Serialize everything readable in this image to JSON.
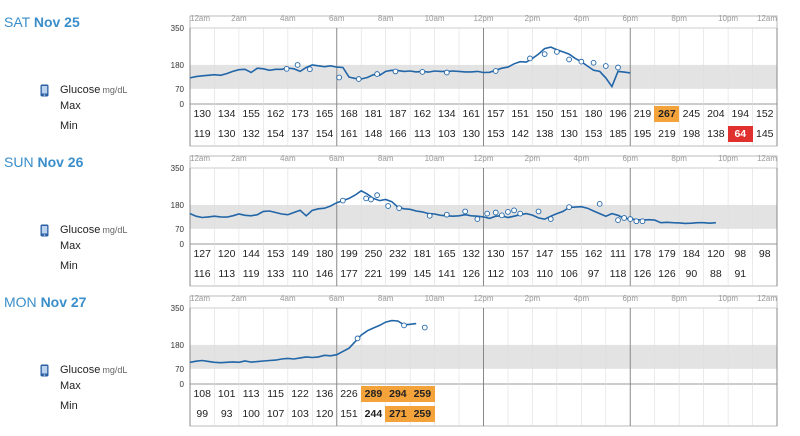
{
  "units": "mg/dL",
  "labels": {
    "glucose": "Glucose",
    "max": "Max",
    "min": "Min"
  },
  "colors": {
    "line": "#2266a8",
    "band": "#e3e3e3",
    "high": "#f4a23a",
    "low": "#e0312f",
    "title": "#3a8ec9"
  },
  "axis": {
    "y_ticks": [
      "350",
      "180",
      "70",
      "0"
    ],
    "y_values": [
      350,
      180,
      70,
      0
    ],
    "time_labels": [
      "12am",
      "2am",
      "4am",
      "6am",
      "8am",
      "10am",
      "12pm",
      "2pm",
      "4pm",
      "6pm",
      "8pm",
      "10pm",
      "12am"
    ]
  },
  "days": [
    {
      "weekday": "SAT",
      "date": "Nov 25",
      "max": [
        "130",
        "134",
        "155",
        "162",
        "173",
        "165",
        "168",
        "181",
        "187",
        "162",
        "134",
        "161",
        "157",
        "151",
        "150",
        "151",
        "180",
        "196",
        "219",
        "267",
        "245",
        "204",
        "194",
        "152"
      ],
      "min": [
        "119",
        "130",
        "132",
        "154",
        "137",
        "154",
        "161",
        "148",
        "166",
        "113",
        "103",
        "130",
        "153",
        "142",
        "138",
        "130",
        "153",
        "185",
        "195",
        "219",
        "198",
        "138",
        "64",
        "145"
      ],
      "max_flags": [
        "",
        "",
        "",
        "",
        "",
        "",
        "",
        "",
        "",
        "",
        "",
        "",
        "",
        "",
        "",
        "",
        "",
        "",
        "",
        "high",
        "",
        "",
        "",
        ""
      ],
      "min_flags": [
        "",
        "",
        "",
        "",
        "",
        "",
        "",
        "",
        "",
        "",
        "",
        "",
        "",
        "",
        "",
        "",
        "",
        "",
        "",
        "",
        "",
        "",
        "low",
        ""
      ],
      "curve": [
        [
          0,
          120
        ],
        [
          0.5,
          126
        ],
        [
          1,
          130
        ],
        [
          1.5,
          132
        ],
        [
          2,
          135
        ],
        [
          2.5,
          132
        ],
        [
          3,
          140
        ],
        [
          3.5,
          150
        ],
        [
          4,
          158
        ],
        [
          4.5,
          160
        ],
        [
          5,
          145
        ],
        [
          5.5,
          165
        ],
        [
          6,
          162
        ],
        [
          6.5,
          155
        ],
        [
          7,
          160
        ],
        [
          7.5,
          160
        ],
        [
          8,
          166
        ],
        [
          8.5,
          162
        ],
        [
          9,
          150
        ],
        [
          9.5,
          168
        ],
        [
          10,
          180
        ],
        [
          10.5,
          176
        ],
        [
          11,
          172
        ],
        [
          11.5,
          176
        ],
        [
          12,
          170
        ],
        [
          12.5,
          168
        ],
        [
          13,
          124
        ],
        [
          13.5,
          118
        ],
        [
          14,
          115
        ],
        [
          14.5,
          122
        ],
        [
          15,
          135
        ],
        [
          15.5,
          132
        ],
        [
          16,
          150
        ],
        [
          16.5,
          155
        ],
        [
          17,
          154
        ],
        [
          17.5,
          150
        ],
        [
          18,
          152
        ],
        [
          18.5,
          148
        ],
        [
          19,
          150
        ],
        [
          19.5,
          147
        ],
        [
          20,
          152
        ],
        [
          20.5,
          150
        ],
        [
          21,
          150
        ],
        [
          21.5,
          152
        ],
        [
          22,
          150
        ],
        [
          22.5,
          148
        ],
        [
          23,
          148
        ],
        [
          23.5,
          150
        ],
        [
          24,
          145
        ],
        [
          24.5,
          146
        ],
        [
          25,
          155
        ],
        [
          25.5,
          165
        ],
        [
          26,
          170
        ],
        [
          26.5,
          185
        ],
        [
          27,
          195
        ],
        [
          27.5,
          193
        ],
        [
          28,
          210
        ],
        [
          28.5,
          230
        ],
        [
          29,
          255
        ],
        [
          29.5,
          262
        ],
        [
          30,
          250
        ],
        [
          30.5,
          240
        ],
        [
          31,
          230
        ],
        [
          31.5,
          210
        ],
        [
          32,
          195
        ],
        [
          32.5,
          175
        ],
        [
          33,
          155
        ],
        [
          33.5,
          150
        ],
        [
          34,
          120
        ],
        [
          34.5,
          80
        ],
        [
          35,
          150
        ],
        [
          35.5,
          147
        ],
        [
          36,
          143
        ]
      ],
      "points": [
        [
          7.9,
          162
        ],
        [
          8.8,
          180
        ],
        [
          9.8,
          160
        ],
        [
          12.2,
          122
        ],
        [
          13.8,
          115
        ],
        [
          15.3,
          138
        ],
        [
          16.8,
          150
        ],
        [
          19,
          148
        ],
        [
          21,
          145
        ],
        [
          25,
          152
        ],
        [
          27.8,
          210
        ],
        [
          29,
          230
        ],
        [
          30,
          240
        ],
        [
          31,
          205
        ],
        [
          32,
          195
        ],
        [
          33,
          190
        ],
        [
          34,
          175
        ],
        [
          35,
          168
        ]
      ]
    },
    {
      "weekday": "SUN",
      "date": "Nov 26",
      "max": [
        "127",
        "120",
        "144",
        "153",
        "149",
        "180",
        "199",
        "250",
        "232",
        "181",
        "165",
        "132",
        "130",
        "157",
        "147",
        "155",
        "162",
        "111",
        "178",
        "179",
        "184",
        "120",
        "98",
        "98"
      ],
      "min": [
        "116",
        "113",
        "119",
        "133",
        "110",
        "146",
        "177",
        "221",
        "199",
        "145",
        "141",
        "126",
        "112",
        "103",
        "110",
        "106",
        "97",
        "118",
        "126",
        "126",
        "90",
        "88",
        "91",
        ""
      ],
      "max_flags": [
        "",
        "",
        "",
        "",
        "",
        "",
        "",
        "",
        "",
        "",
        "",
        "",
        "",
        "",
        "",
        "",
        "",
        "",
        "",
        "",
        "",
        "",
        "",
        ""
      ],
      "min_flags": [
        "",
        "",
        "",
        "",
        "",
        "",
        "",
        "",
        "",
        "",
        "",
        "",
        "",
        "",
        "",
        "",
        "",
        "",
        "",
        "",
        "",
        "",
        "",
        ""
      ],
      "curve": [
        [
          0,
          140
        ],
        [
          0.5,
          128
        ],
        [
          1,
          122
        ],
        [
          1.5,
          125
        ],
        [
          2,
          128
        ],
        [
          2.5,
          125
        ],
        [
          3,
          124
        ],
        [
          3.5,
          130
        ],
        [
          4,
          138
        ],
        [
          4.5,
          132
        ],
        [
          5,
          130
        ],
        [
          5.5,
          135
        ],
        [
          6,
          150
        ],
        [
          6.5,
          152
        ],
        [
          7,
          145
        ],
        [
          7.5,
          138
        ],
        [
          8,
          135
        ],
        [
          8.5,
          145
        ],
        [
          9,
          155
        ],
        [
          9.5,
          130
        ],
        [
          10,
          155
        ],
        [
          10.5,
          162
        ],
        [
          11,
          165
        ],
        [
          11.5,
          175
        ],
        [
          12,
          190
        ],
        [
          12.5,
          200
        ],
        [
          13,
          210
        ],
        [
          13.5,
          225
        ],
        [
          14,
          245
        ],
        [
          14.5,
          230
        ],
        [
          15,
          210
        ],
        [
          15.5,
          200
        ],
        [
          16,
          205
        ],
        [
          16.5,
          195
        ],
        [
          17,
          170
        ],
        [
          17.5,
          162
        ],
        [
          18,
          160
        ],
        [
          18.5,
          152
        ],
        [
          19,
          148
        ],
        [
          19.5,
          140
        ],
        [
          20,
          138
        ],
        [
          20.5,
          132
        ],
        [
          21,
          130
        ],
        [
          21.5,
          128
        ],
        [
          22,
          130
        ],
        [
          22.5,
          135
        ],
        [
          23,
          130
        ],
        [
          23.5,
          128
        ],
        [
          24,
          125
        ],
        [
          24.5,
          118
        ],
        [
          25,
          128
        ],
        [
          25.5,
          130
        ],
        [
          26,
          122
        ],
        [
          26.5,
          128
        ],
        [
          27,
          135
        ],
        [
          27.5,
          140
        ],
        [
          28,
          133
        ],
        [
          28.5,
          120
        ],
        [
          29,
          114
        ],
        [
          29.5,
          128
        ],
        [
          30,
          140
        ],
        [
          30.5,
          150
        ],
        [
          31,
          168
        ],
        [
          31.5,
          170
        ],
        [
          32,
          172
        ],
        [
          32.5,
          165
        ],
        [
          33,
          152
        ],
        [
          33.5,
          140
        ],
        [
          34,
          128
        ],
        [
          34.5,
          140
        ],
        [
          35,
          132
        ],
        [
          35.5,
          118
        ],
        [
          36,
          116
        ],
        [
          36.5,
          112
        ],
        [
          37,
          110
        ],
        [
          37.5,
          112
        ],
        [
          38,
          110
        ],
        [
          38.5,
          98
        ],
        [
          39,
          100
        ],
        [
          39.5,
          98
        ],
        [
          40,
          97
        ],
        [
          40.5,
          95
        ],
        [
          41,
          96
        ],
        [
          41.5,
          98
        ],
        [
          42,
          98
        ],
        [
          42.5,
          96
        ],
        [
          43,
          98
        ]
      ],
      "points": [
        [
          12.5,
          200
        ],
        [
          14.4,
          210
        ],
        [
          14.8,
          205
        ],
        [
          15.3,
          225
        ],
        [
          16.2,
          175
        ],
        [
          17.1,
          165
        ],
        [
          19.6,
          130
        ],
        [
          21,
          135
        ],
        [
          22.5,
          150
        ],
        [
          23.5,
          115
        ],
        [
          24.3,
          140
        ],
        [
          25,
          145
        ],
        [
          25.5,
          132
        ],
        [
          26,
          148
        ],
        [
          26.5,
          155
        ],
        [
          27,
          140
        ],
        [
          28.5,
          150
        ],
        [
          29.5,
          115
        ],
        [
          31,
          170
        ],
        [
          33.5,
          185
        ],
        [
          35,
          110
        ],
        [
          35.5,
          120
        ],
        [
          36,
          115
        ],
        [
          36.5,
          105
        ],
        [
          37,
          105
        ]
      ]
    },
    {
      "weekday": "MON",
      "date": "Nov 27",
      "max": [
        "108",
        "101",
        "113",
        "115",
        "122",
        "136",
        "226",
        "289",
        "294",
        "259",
        "",
        "",
        "",
        "",
        "",
        "",
        "",
        "",
        "",
        "",
        "",
        "",
        "",
        ""
      ],
      "min": [
        "99",
        "93",
        "100",
        "107",
        "103",
        "120",
        "151",
        "244",
        "271",
        "259",
        "",
        "",
        "",
        "",
        "",
        "",
        "",
        "",
        "",
        "",
        "",
        "",
        "",
        ""
      ],
      "max_flags": [
        "",
        "",
        "",
        "",
        "",
        "",
        "",
        "high",
        "high",
        "high",
        "",
        "",
        "",
        "",
        "",
        "",
        "",
        "",
        "",
        "",
        "",
        "",
        "",
        ""
      ],
      "min_flags": [
        "",
        "",
        "",
        "",
        "",
        "",
        "",
        "dark",
        "high",
        "high",
        "",
        "",
        "",
        "",
        "",
        "",
        "",
        "",
        "",
        "",
        "",
        "",
        "",
        ""
      ],
      "curve": [
        [
          0,
          100
        ],
        [
          0.5,
          105
        ],
        [
          1,
          108
        ],
        [
          1.5,
          104
        ],
        [
          2,
          100
        ],
        [
          2.5,
          98
        ],
        [
          3,
          100
        ],
        [
          3.5,
          102
        ],
        [
          4,
          100
        ],
        [
          4.5,
          106
        ],
        [
          5,
          101
        ],
        [
          5.5,
          103
        ],
        [
          6,
          106
        ],
        [
          6.5,
          108
        ],
        [
          7,
          110
        ],
        [
          7.5,
          115
        ],
        [
          8,
          118
        ],
        [
          8.5,
          115
        ],
        [
          9,
          120
        ],
        [
          9.5,
          125
        ],
        [
          10,
          122
        ],
        [
          10.5,
          125
        ],
        [
          11,
          132
        ],
        [
          11.5,
          130
        ],
        [
          12,
          135
        ],
        [
          12.5,
          150
        ],
        [
          13,
          165
        ],
        [
          13.5,
          195
        ],
        [
          14,
          225
        ],
        [
          14.5,
          245
        ],
        [
          15,
          258
        ],
        [
          15.5,
          270
        ],
        [
          16,
          285
        ],
        [
          16.5,
          292
        ],
        [
          17,
          290
        ],
        [
          17.5,
          272
        ],
        [
          18,
          275
        ],
        [
          18.5,
          278
        ]
      ],
      "points": [
        [
          13.7,
          210
        ],
        [
          17.5,
          270
        ],
        [
          19.2,
          260
        ]
      ]
    }
  ]
}
